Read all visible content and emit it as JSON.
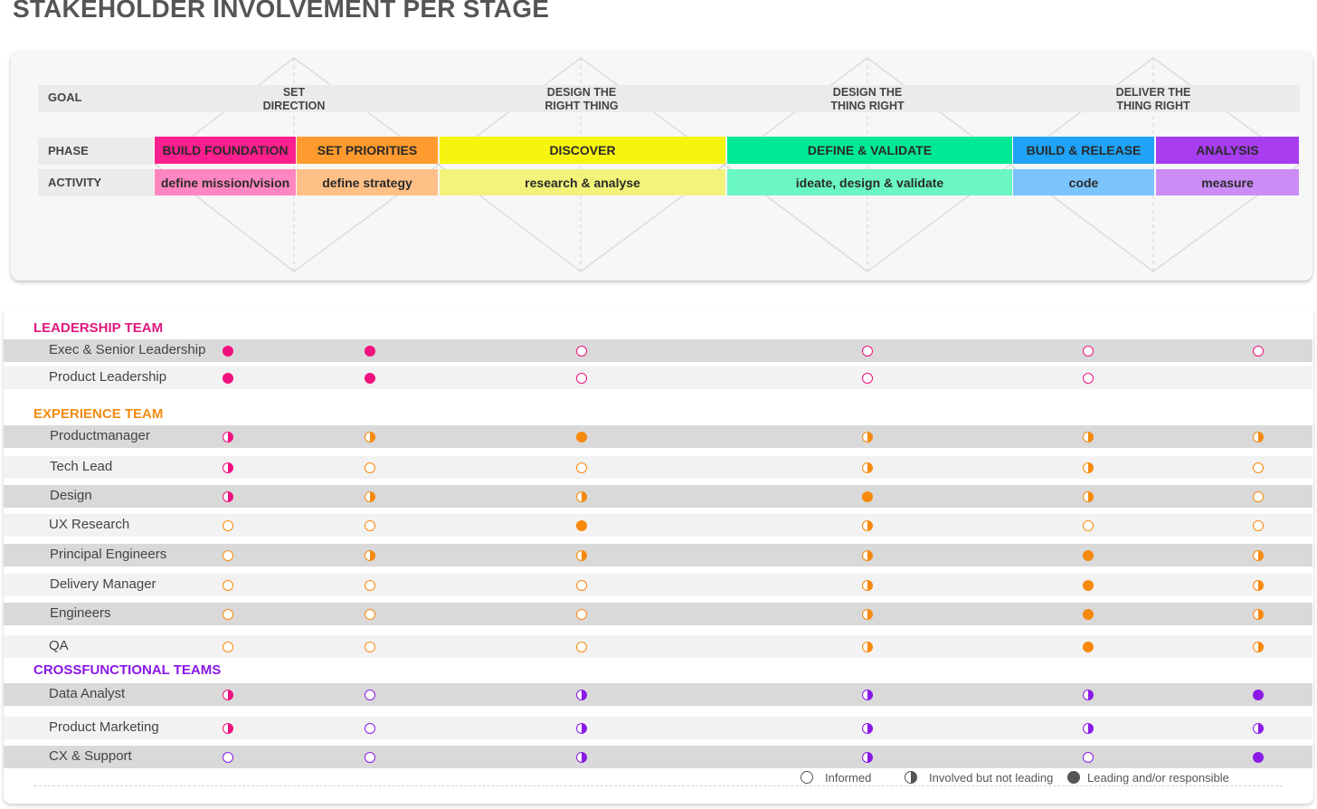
{
  "title": "STAKEHOLDER INVOLVEMENT PER STAGE",
  "labels": {
    "goal": "GOAL",
    "phase": "PHASE",
    "activity": "ACTIVITY"
  },
  "goals": [
    {
      "line1": "SET",
      "line2": "DIRECTION"
    },
    {
      "line1": "DESIGN THE",
      "line2": "RIGHT THING"
    },
    {
      "line1": "DESIGN THE",
      "line2": "THING RIGHT"
    },
    {
      "line1": "DELIVER THE",
      "line2": "THING RIGHT"
    }
  ],
  "phases": [
    {
      "label": "BUILD FOUNDATION",
      "color": "#ff1f8e"
    },
    {
      "label": "SET PRIORITIES",
      "color": "#ff9b2e"
    },
    {
      "label": "DISCOVER",
      "color": "#f7f40f"
    },
    {
      "label": "DEFINE & VALIDATE",
      "color": "#00ea96"
    },
    {
      "label": "BUILD & RELEASE",
      "color": "#1fa3f7"
    },
    {
      "label": "ANALYSIS",
      "color": "#a83df0"
    }
  ],
  "activities": [
    {
      "label": "define mission/vision",
      "color": "#ff86c0"
    },
    {
      "label": "define strategy",
      "color": "#ffc088"
    },
    {
      "label": "research & analyse",
      "color": "#f3f27a"
    },
    {
      "label": "ideate, design & validate",
      "color": "#6af7c3"
    },
    {
      "label": "code",
      "color": "#7bc4fb"
    },
    {
      "label": "measure",
      "color": "#cc8cf6"
    }
  ],
  "sections": [
    {
      "title": "LEADERSHIP TEAM",
      "color": "#e0197d"
    },
    {
      "title": "EXPERIENCE TEAM",
      "color": "#f28c12"
    },
    {
      "title": "CROSSFUNCTIONAL TEAMS",
      "color": "#8a17e6"
    }
  ],
  "rows": [
    {
      "name": "Exec & Senior Leadership",
      "states": [
        "full:pink",
        "full:pink",
        "empty:pink",
        "empty:pink",
        "empty:pink",
        "empty:pink"
      ]
    },
    {
      "name": "Product Leadership",
      "states": [
        "full:pink",
        "full:pink",
        "empty:pink",
        "empty:pink",
        "empty:pink",
        "none"
      ]
    },
    {
      "name": "Productmanager",
      "states": [
        "half:pink",
        "half:orange",
        "full:orange",
        "half:orange",
        "half:orange",
        "half:orange"
      ]
    },
    {
      "name": "Tech Lead",
      "states": [
        "half:pink",
        "empty:orange",
        "empty:orange",
        "half:orange",
        "half:orange",
        "empty:orange"
      ]
    },
    {
      "name": "Design",
      "states": [
        "half:pink",
        "half:orange",
        "half:orange",
        "full:orange",
        "half:orange",
        "empty:orange"
      ]
    },
    {
      "name": "UX Research",
      "states": [
        "empty:orange",
        "empty:orange",
        "full:orange",
        "half:orange",
        "empty:orange",
        "empty:orange"
      ]
    },
    {
      "name": "Principal Engineers",
      "states": [
        "empty:orange",
        "half:orange",
        "half:orange",
        "half:orange",
        "full:orange",
        "half:orange"
      ]
    },
    {
      "name": "Delivery Manager",
      "states": [
        "empty:orange",
        "empty:orange",
        "empty:orange",
        "half:orange",
        "full:orange",
        "half:orange"
      ]
    },
    {
      "name": "Engineers",
      "states": [
        "empty:orange",
        "empty:orange",
        "empty:orange",
        "half:orange",
        "full:orange",
        "half:orange"
      ]
    },
    {
      "name": "QA",
      "states": [
        "empty:orange",
        "empty:orange",
        "empty:orange",
        "half:orange",
        "full:orange",
        "half:orange"
      ]
    },
    {
      "name": "Data Analyst",
      "states": [
        "half:pink",
        "empty:purple",
        "half:purple",
        "half:purple",
        "half:purple",
        "full:purple"
      ]
    },
    {
      "name": "Product Marketing",
      "states": [
        "half:pink",
        "empty:purple",
        "half:purple",
        "half:purple",
        "half:purple",
        "half:purple"
      ]
    },
    {
      "name": "CX & Support",
      "states": [
        "empty:purple",
        "empty:purple",
        "half:purple",
        "half:purple",
        "empty:purple",
        "full:purple"
      ]
    }
  ],
  "dot_colors": {
    "pink": "#f0117f",
    "orange": "#f7890d",
    "purple": "#8b1ae8"
  },
  "legend": {
    "informed": "Informed",
    "involved": "Involved but not leading",
    "leading": "Leading and/or responsible"
  }
}
